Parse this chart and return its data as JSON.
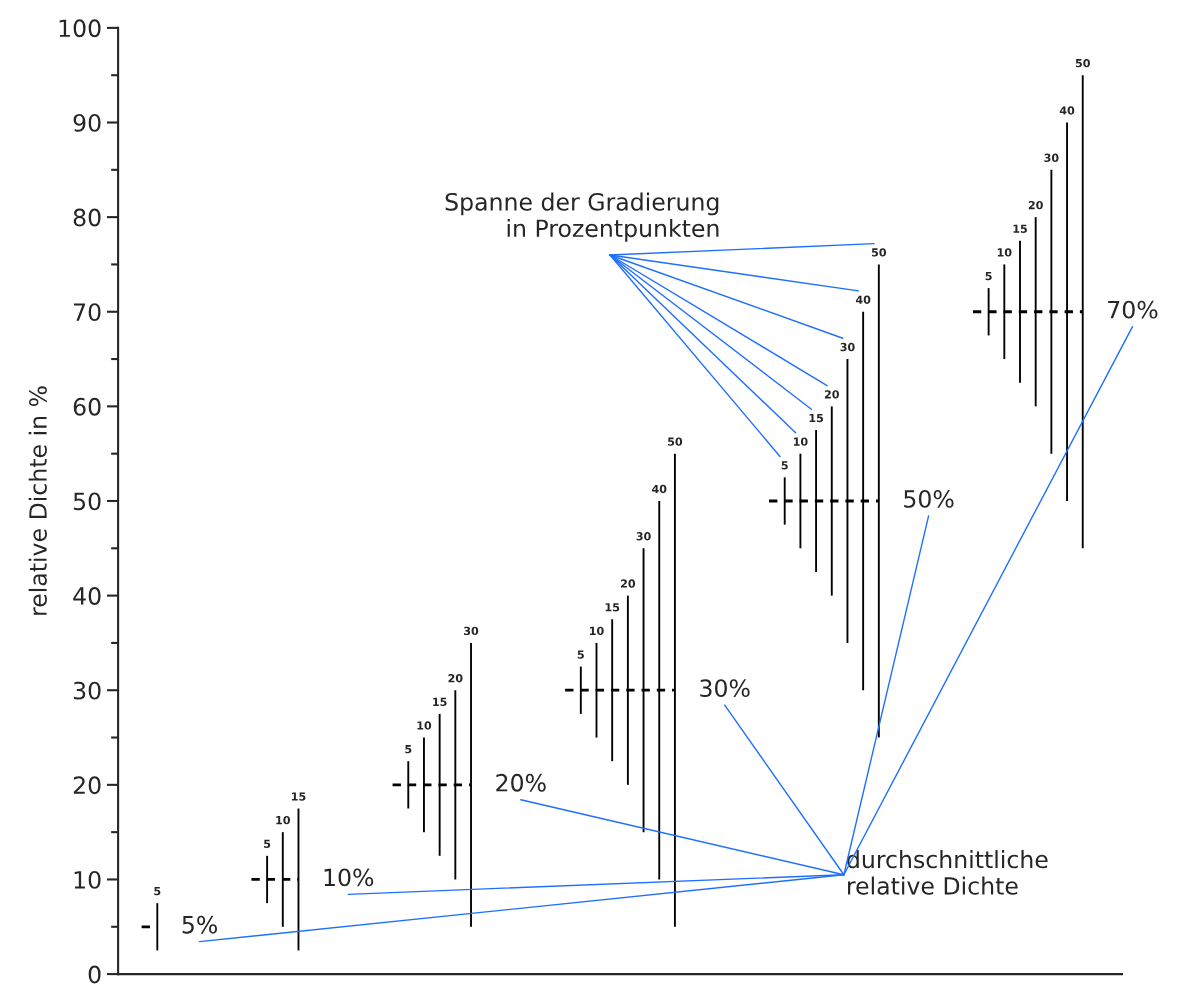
{
  "chart_data": {
    "type": "bar",
    "ylabel": "relative Dichte in %",
    "categories": [
      null,
      null,
      null,
      null,
      null,
      null,
      null,
      null,
      null,
      null,
      null,
      null,
      null,
      null,
      null,
      null,
      null,
      null,
      null,
      null,
      null,
      null,
      null,
      null,
      null,
      null,
      null,
      null,
      null,
      null,
      null,
      null,
      null,
      null,
      null,
      null,
      null,
      null,
      null,
      null,
      null,
      null,
      null,
      null,
      null,
      null,
      null,
      null,
      null,
      null,
      null,
      null,
      null,
      null,
      null,
      null,
      null,
      null,
      null,
      null,
      null,
      null,
      null,
      null
    ],
    "series": [
      {
        "color": "#000000",
        "value_labels": [
          null,
          null,
          "5",
          null,
          null,
          null,
          null,
          null,
          null,
          "5",
          "10",
          "15",
          null,
          null,
          null,
          null,
          null,
          null,
          "5",
          "10",
          "15",
          "20",
          "30",
          null,
          null,
          null,
          null,
          null,
          null,
          "5",
          "10",
          "15",
          "20",
          "30",
          "40",
          "50",
          null,
          null,
          null,
          null,
          null,
          null,
          "5",
          "10",
          "15",
          "20",
          "30",
          "40",
          "50",
          null,
          null,
          null,
          null,
          null,
          null,
          "5",
          "10",
          "15",
          "20",
          "30",
          "40",
          "50",
          null,
          null
        ],
        "values": [
          null,
          null,
          5,
          null,
          null,
          null,
          null,
          null,
          null,
          5,
          10,
          15,
          null,
          null,
          null,
          null,
          null,
          null,
          5,
          10,
          15,
          20,
          30,
          null,
          null,
          null,
          null,
          null,
          null,
          5,
          10,
          15,
          20,
          30,
          40,
          50,
          null,
          null,
          null,
          null,
          null,
          null,
          5,
          10,
          15,
          20,
          30,
          40,
          50,
          null,
          null,
          null,
          null,
          null,
          null,
          5,
          10,
          15,
          20,
          30,
          40,
          50,
          null,
          null
        ],
        "base": [
          null,
          null,
          2.5,
          null,
          null,
          null,
          null,
          null,
          null,
          7.5,
          5,
          2.5,
          null,
          null,
          null,
          null,
          null,
          null,
          17.5,
          15,
          12.5,
          10,
          5,
          null,
          null,
          null,
          null,
          null,
          null,
          27.5,
          25,
          22.5,
          20,
          15,
          10,
          5,
          null,
          null,
          null,
          null,
          null,
          null,
          47.5,
          45,
          42.5,
          40,
          35,
          30,
          25,
          null,
          null,
          null,
          null,
          null,
          null,
          67.5,
          65,
          62.5,
          60,
          55,
          50,
          45,
          null,
          null
        ]
      },
      {
        "type": "line",
        "name": "5%",
        "color": "#000000",
        "line_style": "dashed",
        "values": [
          null,
          5,
          5,
          null,
          null,
          null,
          null,
          null,
          null,
          null,
          null,
          null,
          null,
          null,
          null,
          null,
          null,
          null,
          null,
          null,
          null,
          null,
          null,
          null,
          null,
          null,
          null,
          null,
          null,
          null,
          null,
          null,
          null,
          null,
          null,
          null,
          null,
          null,
          null,
          null,
          null,
          null,
          null,
          null,
          null,
          null,
          null,
          null,
          null,
          null,
          null,
          null,
          null,
          null,
          null,
          null,
          null,
          null,
          null,
          null,
          null,
          null,
          null,
          null
        ]
      },
      {
        "type": "line",
        "name": "10%",
        "color": "#000000",
        "line_style": "dashed",
        "values": [
          null,
          null,
          null,
          null,
          null,
          null,
          null,
          null,
          10,
          10,
          10,
          10,
          null,
          null,
          null,
          null,
          null,
          null,
          null,
          null,
          null,
          null,
          null,
          null,
          null,
          null,
          null,
          null,
          null,
          null,
          null,
          null,
          null,
          null,
          null,
          null,
          null,
          null,
          null,
          null,
          null,
          null,
          null,
          null,
          null,
          null,
          null,
          null,
          null,
          null,
          null,
          null,
          null,
          null,
          null,
          null,
          null,
          null,
          null,
          null,
          null,
          null,
          null,
          null
        ]
      },
      {
        "type": "line",
        "name": "20%",
        "color": "#000000",
        "line_style": "dashed",
        "values": [
          null,
          null,
          null,
          null,
          null,
          null,
          null,
          null,
          null,
          null,
          null,
          null,
          null,
          null,
          null,
          null,
          null,
          20,
          20,
          20,
          20,
          20,
          20,
          null,
          null,
          null,
          null,
          null,
          null,
          null,
          null,
          null,
          null,
          null,
          null,
          null,
          null,
          null,
          null,
          null,
          null,
          null,
          null,
          null,
          null,
          null,
          null,
          null,
          null,
          null,
          null,
          null,
          null,
          null,
          null,
          null,
          null,
          null,
          null,
          null,
          null,
          null,
          null,
          null
        ]
      },
      {
        "type": "line",
        "name": "30%",
        "color": "#000000",
        "line_style": "dashed",
        "values": [
          null,
          null,
          null,
          null,
          null,
          null,
          null,
          null,
          null,
          null,
          null,
          null,
          null,
          null,
          null,
          null,
          null,
          null,
          null,
          null,
          null,
          null,
          null,
          null,
          null,
          null,
          null,
          null,
          30,
          30,
          30,
          30,
          30,
          30,
          30,
          30,
          null,
          null,
          null,
          null,
          null,
          null,
          null,
          null,
          null,
          null,
          null,
          null,
          null,
          null,
          null,
          null,
          null,
          null,
          null,
          null,
          null,
          null,
          null,
          null,
          null,
          null,
          null,
          null
        ]
      },
      {
        "type": "line",
        "name": "50%",
        "color": "#000000",
        "line_style": "dashed",
        "values": [
          null,
          null,
          null,
          null,
          null,
          null,
          null,
          null,
          null,
          null,
          null,
          null,
          null,
          null,
          null,
          null,
          null,
          null,
          null,
          null,
          null,
          null,
          null,
          null,
          null,
          null,
          null,
          null,
          null,
          null,
          null,
          null,
          null,
          null,
          null,
          null,
          null,
          null,
          null,
          null,
          null,
          50,
          50,
          50,
          50,
          50,
          50,
          50,
          50,
          null,
          null,
          null,
          null,
          null,
          null,
          null,
          null,
          null,
          null,
          null,
          null,
          null,
          null,
          null
        ]
      },
      {
        "type": "line",
        "name": "70%",
        "color": "#000000",
        "line_style": "dashed",
        "values": [
          null,
          null,
          null,
          null,
          null,
          null,
          null,
          null,
          null,
          null,
          null,
          null,
          null,
          null,
          null,
          null,
          null,
          null,
          null,
          null,
          null,
          null,
          null,
          null,
          null,
          null,
          null,
          null,
          null,
          null,
          null,
          null,
          null,
          null,
          null,
          null,
          null,
          null,
          null,
          null,
          null,
          null,
          null,
          null,
          null,
          null,
          null,
          null,
          null,
          null,
          null,
          null,
          null,
          null,
          70,
          70,
          70,
          70,
          70,
          70,
          70,
          70,
          null,
          null
        ]
      }
    ],
    "ylim": [
      0,
      100
    ],
    "yticks": [
      0,
      {
        "value": 5,
        "label": null
      },
      10,
      {
        "value": 15,
        "label": null
      },
      20,
      {
        "value": 25,
        "label": null
      },
      30,
      {
        "value": 35,
        "label": null
      },
      40,
      {
        "value": 45,
        "label": null
      },
      50,
      {
        "value": 55,
        "label": null
      },
      60,
      {
        "value": 65,
        "label": null
      },
      70,
      {
        "value": 75,
        "label": null
      },
      80,
      {
        "value": 85,
        "label": null
      },
      90,
      {
        "value": 95,
        "label": null
      },
      100
    ],
    "tick_labels": "y",
    "grid": false,
    "legend": false,
    "marker": "none",
    "annotations": [
      "Spanne der Gradierung\nin Prozentpunkten",
      "durchschnittliche\nrelative Dichte"
    ]
  }
}
